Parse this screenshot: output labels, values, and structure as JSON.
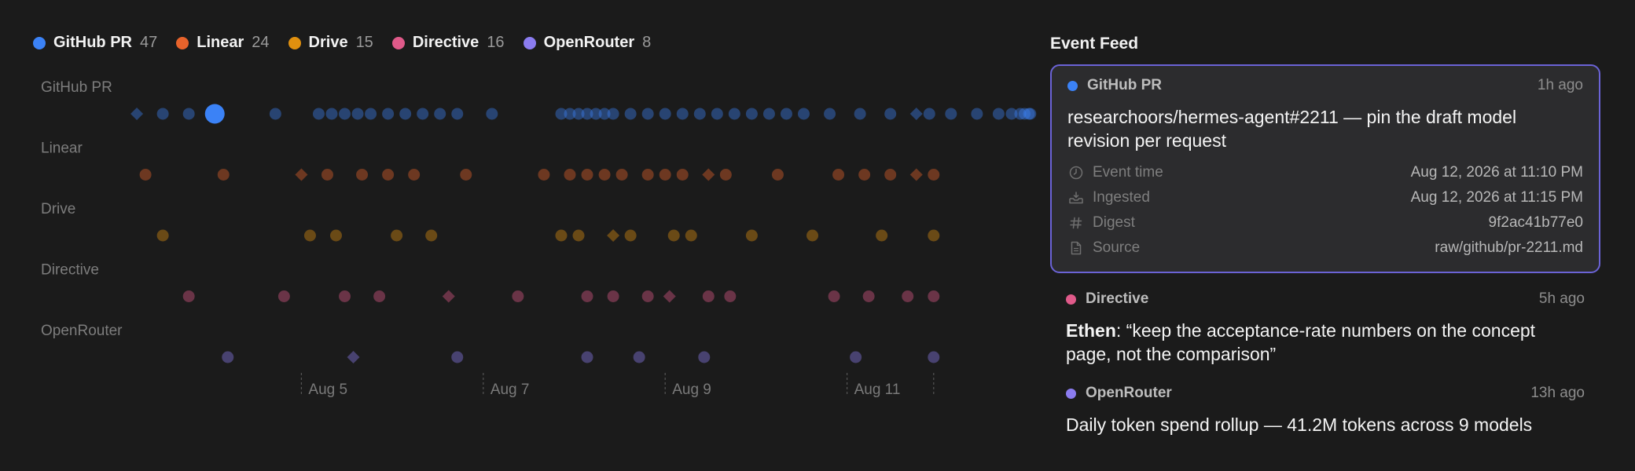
{
  "legend": [
    {
      "name": "GitHub PR",
      "count": "47",
      "color": "#3b82f6"
    },
    {
      "name": "Linear",
      "count": "24",
      "color": "#e8632b"
    },
    {
      "name": "Drive",
      "count": "15",
      "color": "#e0900f"
    },
    {
      "name": "Directive",
      "count": "16",
      "color": "#e05a8a"
    },
    {
      "name": "OpenRouter",
      "count": "8",
      "color": "#8b7cf0"
    }
  ],
  "timeline": {
    "lanes": [
      {
        "label": "GitHub PR",
        "color": "#3b82f6",
        "events": [
          {
            "date": "2026-08-04T04:00",
            "shape": "diamond"
          },
          {
            "date": "2026-08-04T07:00"
          },
          {
            "date": "2026-08-04T10:00"
          },
          {
            "date": "2026-08-04T13:00",
            "highlight": true
          },
          {
            "date": "2026-08-04T20:00"
          },
          {
            "date": "2026-08-05T01:00"
          },
          {
            "date": "2026-08-05T02:30"
          },
          {
            "date": "2026-08-05T04:00"
          },
          {
            "date": "2026-08-05T05:30"
          },
          {
            "date": "2026-08-05T07:00"
          },
          {
            "date": "2026-08-05T09:00"
          },
          {
            "date": "2026-08-05T11:00"
          },
          {
            "date": "2026-08-05T13:00"
          },
          {
            "date": "2026-08-05T15:00"
          },
          {
            "date": "2026-08-05T17:00"
          },
          {
            "date": "2026-08-05T21:00"
          },
          {
            "date": "2026-08-06T05:00"
          },
          {
            "date": "2026-08-06T06:00"
          },
          {
            "date": "2026-08-06T07:00"
          },
          {
            "date": "2026-08-06T08:00"
          },
          {
            "date": "2026-08-06T09:00"
          },
          {
            "date": "2026-08-06T10:00"
          },
          {
            "date": "2026-08-06T11:00"
          },
          {
            "date": "2026-08-06T13:00"
          },
          {
            "date": "2026-08-06T15:00"
          },
          {
            "date": "2026-08-06T17:00"
          },
          {
            "date": "2026-08-06T19:00"
          },
          {
            "date": "2026-08-06T21:00"
          },
          {
            "date": "2026-08-06T23:00"
          },
          {
            "date": "2026-08-07T01:00"
          },
          {
            "date": "2026-08-07T03:00"
          },
          {
            "date": "2026-08-07T05:00"
          },
          {
            "date": "2026-08-07T07:00"
          },
          {
            "date": "2026-08-07T09:00"
          },
          {
            "date": "2026-08-07T12:00"
          },
          {
            "date": "2026-08-07T15:30"
          },
          {
            "date": "2026-08-07T19:00"
          },
          {
            "date": "2026-08-07T22:00",
            "shape": "diamond"
          },
          {
            "date": "2026-08-07T23:30"
          },
          {
            "date": "2026-08-08T02:00"
          },
          {
            "date": "2026-08-08T05:00"
          },
          {
            "date": "2026-08-08T07:30"
          },
          {
            "date": "2026-08-08T09:00"
          },
          {
            "date": "2026-08-08T10:00"
          },
          {
            "date": "2026-08-08T10:30"
          },
          {
            "date": "2026-08-08T11:00"
          },
          {
            "date": "2026-08-08T11:10"
          }
        ]
      },
      {
        "label": "Linear",
        "color": "#e8632b",
        "events": [
          {
            "date": "2026-08-04T05:00"
          },
          {
            "date": "2026-08-04T14:00"
          },
          {
            "date": "2026-08-04T23:00",
            "shape": "diamond"
          },
          {
            "date": "2026-08-05T02:00"
          },
          {
            "date": "2026-08-05T06:00"
          },
          {
            "date": "2026-08-05T09:00"
          },
          {
            "date": "2026-08-05T12:00"
          },
          {
            "date": "2026-08-05T18:00"
          },
          {
            "date": "2026-08-06T03:00"
          },
          {
            "date": "2026-08-06T06:00"
          },
          {
            "date": "2026-08-06T08:00"
          },
          {
            "date": "2026-08-06T10:00"
          },
          {
            "date": "2026-08-06T12:00"
          },
          {
            "date": "2026-08-06T15:00"
          },
          {
            "date": "2026-08-06T17:00"
          },
          {
            "date": "2026-08-06T19:00"
          },
          {
            "date": "2026-08-06T22:00",
            "shape": "diamond"
          },
          {
            "date": "2026-08-07T00:00"
          },
          {
            "date": "2026-08-07T06:00"
          },
          {
            "date": "2026-08-07T13:00"
          },
          {
            "date": "2026-08-07T16:00"
          },
          {
            "date": "2026-08-07T19:00"
          },
          {
            "date": "2026-08-07T22:00",
            "shape": "diamond"
          },
          {
            "date": "2026-08-08T00:00"
          }
        ]
      },
      {
        "label": "Drive",
        "color": "#e0900f",
        "events": [
          {
            "date": "2026-08-04T07:00"
          },
          {
            "date": "2026-08-05T00:00"
          },
          {
            "date": "2026-08-05T03:00"
          },
          {
            "date": "2026-08-05T10:00"
          },
          {
            "date": "2026-08-05T14:00"
          },
          {
            "date": "2026-08-06T05:00"
          },
          {
            "date": "2026-08-06T07:00"
          },
          {
            "date": "2026-08-06T11:00",
            "shape": "diamond"
          },
          {
            "date": "2026-08-06T13:00"
          },
          {
            "date": "2026-08-06T18:00"
          },
          {
            "date": "2026-08-06T20:00"
          },
          {
            "date": "2026-08-07T03:00"
          },
          {
            "date": "2026-08-07T10:00"
          },
          {
            "date": "2026-08-07T18:00"
          },
          {
            "date": "2026-08-08T00:00"
          }
        ]
      },
      {
        "label": "Directive",
        "color": "#e05a8a",
        "events": [
          {
            "date": "2026-08-04T10:00"
          },
          {
            "date": "2026-08-04T21:00"
          },
          {
            "date": "2026-08-05T04:00"
          },
          {
            "date": "2026-08-05T08:00"
          },
          {
            "date": "2026-08-05T16:00",
            "shape": "diamond"
          },
          {
            "date": "2026-08-06T00:00"
          },
          {
            "date": "2026-08-06T08:00"
          },
          {
            "date": "2026-08-06T11:00"
          },
          {
            "date": "2026-08-06T15:00"
          },
          {
            "date": "2026-08-06T17:30",
            "shape": "diamond"
          },
          {
            "date": "2026-08-06T22:00"
          },
          {
            "date": "2026-08-07T00:30"
          },
          {
            "date": "2026-08-07T12:30"
          },
          {
            "date": "2026-08-07T16:30"
          },
          {
            "date": "2026-08-07T21:00"
          },
          {
            "date": "2026-08-08T00:00"
          }
        ]
      },
      {
        "label": "OpenRouter",
        "color": "#8b7cf0",
        "events": [
          {
            "date": "2026-08-04T14:30"
          },
          {
            "date": "2026-08-05T05:00",
            "shape": "diamond"
          },
          {
            "date": "2026-08-05T17:00"
          },
          {
            "date": "2026-08-06T08:00"
          },
          {
            "date": "2026-08-06T14:00"
          },
          {
            "date": "2026-08-06T21:30"
          },
          {
            "date": "2026-08-07T15:00"
          },
          {
            "date": "2026-08-08T00:00"
          }
        ]
      }
    ],
    "ticks": [
      {
        "date": "2026-08-04T23:00",
        "label": "Aug 5"
      },
      {
        "date": "2026-08-05T20:00",
        "label": "Aug 7"
      },
      {
        "date": "2026-08-06T17:00",
        "label": "Aug 9"
      },
      {
        "date": "2026-08-07T14:00",
        "label": "Aug 11"
      },
      {
        "date": "2026-08-08T00:00",
        "label": ""
      }
    ]
  },
  "feed": {
    "title": "Event Feed",
    "selected": {
      "source": "GitHub PR",
      "color": "#3b82f6",
      "time_ago": "1h ago",
      "title": "researchoors/hermes-agent#2211 — pin the draft model revision per request",
      "meta": [
        {
          "icon": "clock-icon",
          "key": "Event time",
          "value": "Aug 12, 2026 at 11:10 PM"
        },
        {
          "icon": "inbox-icon",
          "key": "Ingested",
          "value": "Aug 12, 2026 at 11:15 PM"
        },
        {
          "icon": "hash-icon",
          "key": "Digest",
          "value": "9f2ac41b77e0"
        },
        {
          "icon": "file-icon",
          "key": "Source",
          "value": "raw/github/pr-2211.md"
        }
      ]
    },
    "entries": [
      {
        "source": "Directive",
        "color": "#e05a8a",
        "time_ago": "5h ago",
        "author": "Ethen",
        "title": ": “keep the acceptance-rate numbers on the concept page, not the comparison”"
      },
      {
        "source": "OpenRouter",
        "color": "#8b7cf0",
        "time_ago": "13h ago",
        "author": "",
        "title": "Daily token spend rollup — 41.2M tokens across 9 models"
      }
    ]
  }
}
